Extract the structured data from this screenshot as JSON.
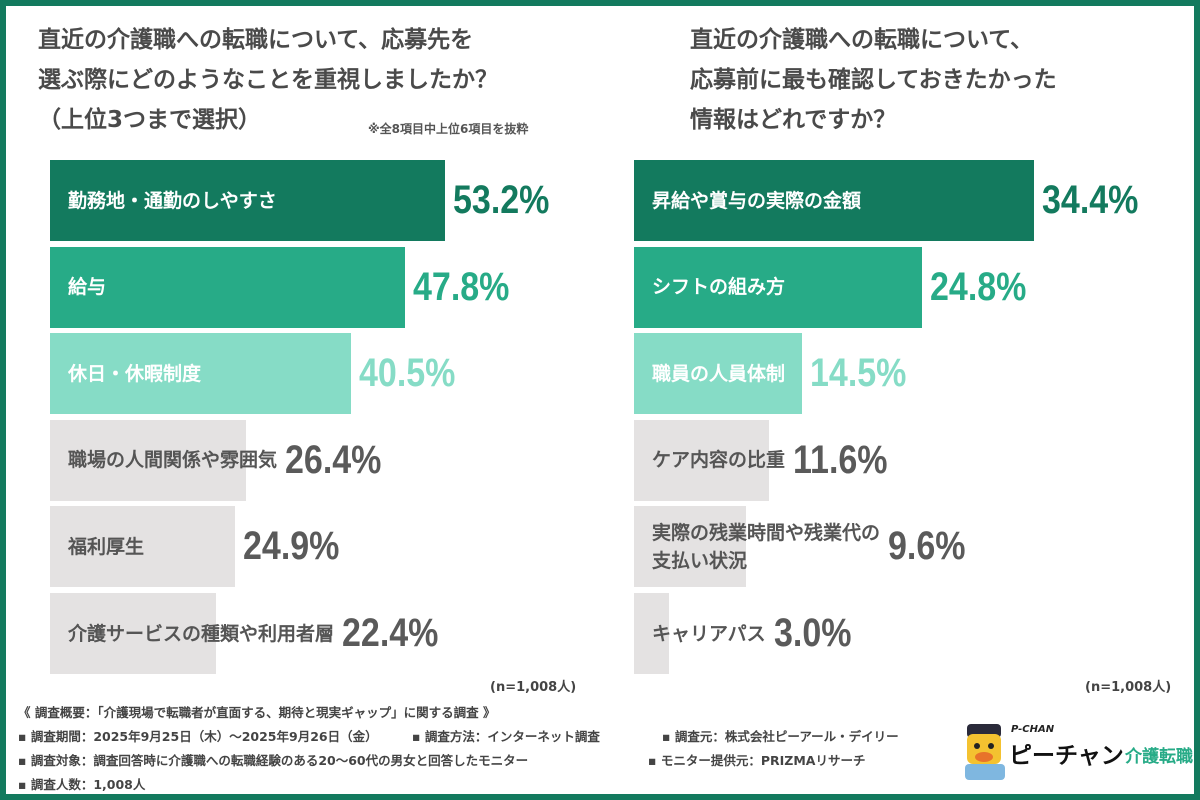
{
  "left": {
    "title": "直近の介護職への転職について、応募先を\n選ぶ際にどのようなことを重視しましたか？\n（上位3つまで選択）",
    "note": "※全8項目中上位6項目を抜粋",
    "n": "(n=1,008人)"
  },
  "right": {
    "title": "直近の介護職への転職について、\n応募前に最も確認しておきたかった\n情報はどれですか？",
    "n": "(n=1,008人)"
  },
  "colors": {
    "rank1": "#137a5e",
    "rank2": "#27ab87",
    "rank3": "#86dcc6",
    "other": "#e4e2e2",
    "frame": "#137a5e"
  },
  "chart_data": [
    {
      "type": "bar",
      "orientation": "horizontal",
      "unit": "%",
      "categories": [
        "勤務地・通勤のしやすさ",
        "給与",
        "休日・休暇制度",
        "職場の人間関係や雰囲気",
        "福利厚生",
        "介護サービスの種類や利用者層"
      ],
      "values": [
        53.2,
        47.8,
        40.5,
        26.4,
        24.9,
        22.4
      ],
      "labels": [
        "53.2%",
        "47.8%",
        "40.5%",
        "26.4%",
        "24.9%",
        "22.4%"
      ]
    },
    {
      "type": "bar",
      "orientation": "horizontal",
      "unit": "%",
      "categories": [
        "昇給や賞与の実際の金額",
        "シフトの組み方",
        "職員の人員体制",
        "ケア内容の比重",
        "実際の残業時間や残業代の\n支払い状況",
        "キャリアパス"
      ],
      "values": [
        34.4,
        24.8,
        14.5,
        11.6,
        9.6,
        3.0
      ],
      "labels": [
        "34.4%",
        "24.8%",
        "14.5%",
        "11.6%",
        "9.6%",
        "3.0%"
      ]
    }
  ],
  "footer": {
    "summary": "《 調査概要：「介護現場で転職者が直面する、期待と現実ギャップ」に関する調査 》",
    "period": "▪ 調査期間：2025年9月25日（木）～2025年9月26日（金）",
    "method": "▪ 調査方法：インターネット調査",
    "source": "▪ 調査元：株式会社ピーアール・デイリー",
    "target": "▪ 調査対象：調査回答時に介護職への転職経験のある20～60代の男女と回答したモニター",
    "provider": "▪ モニター提供元：PRIZMAリサーチ",
    "count": "▪ 調査人数：1,008人"
  },
  "logo": {
    "small": "P-CHAN",
    "main": "ピーチャン",
    "sub": "介護転職"
  }
}
